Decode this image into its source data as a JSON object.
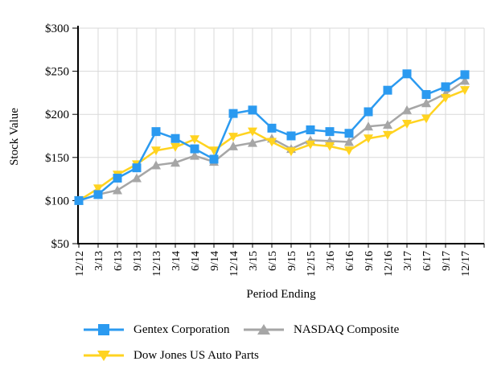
{
  "chart_data": {
    "type": "line",
    "title": "",
    "xlabel": "Period Ending",
    "ylabel": "Stock Value",
    "ylim": [
      50,
      300
    ],
    "ytick_step": 50,
    "ytick_labels": [
      "$50",
      "$100",
      "$150",
      "$200",
      "$250",
      "$300"
    ],
    "grid": true,
    "legend_position": "bottom",
    "categories": [
      "12/12",
      "3/13",
      "6/13",
      "9/13",
      "12/13",
      "3/14",
      "6/14",
      "9/14",
      "12/14",
      "3/15",
      "6/15",
      "9/15",
      "12/15",
      "3/16",
      "6/16",
      "9/16",
      "12/16",
      "3/17",
      "6/17",
      "9/17",
      "12/17"
    ],
    "series": [
      {
        "name": "Gentex Corporation",
        "marker": "square",
        "color": "#2b9af0",
        "values": [
          100,
          107,
          126,
          138,
          180,
          172,
          160,
          148,
          201,
          205,
          184,
          175,
          182,
          180,
          178,
          203,
          228,
          247,
          223,
          232,
          246
        ]
      },
      {
        "name": "NASDAQ Composite",
        "marker": "triangle-up",
        "color": "#a6a6a6",
        "values": [
          100,
          107,
          112,
          126,
          141,
          144,
          152,
          145,
          163,
          167,
          172,
          160,
          170,
          169,
          168,
          186,
          188,
          205,
          213,
          224,
          239
        ]
      },
      {
        "name": "Dow Jones US Auto Parts",
        "marker": "triangle-down",
        "color": "#ffd320",
        "values": [
          100,
          114,
          130,
          142,
          158,
          162,
          171,
          158,
          174,
          180,
          168,
          157,
          165,
          163,
          158,
          172,
          176,
          189,
          195,
          219,
          228
        ]
      }
    ],
    "colors": {
      "grid": "#d9d9d9",
      "axis": "#000000",
      "text": "#000000"
    }
  }
}
